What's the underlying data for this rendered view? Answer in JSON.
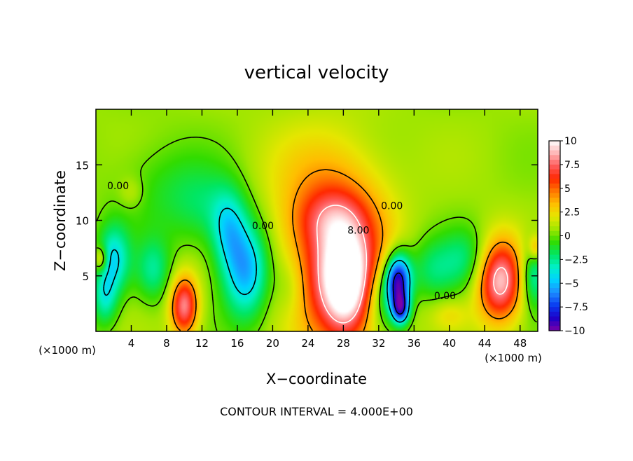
{
  "chart_data": {
    "type": "heatmap",
    "title": "vertical velocity",
    "xlabel": "X−coordinate",
    "ylabel": "Z−coordinate",
    "x_unit": "(×1000 m)",
    "x_unit_right": "(×1000 m)",
    "footer": "CONTOUR INTERVAL = 4.000E+00",
    "xlim": [
      0,
      50
    ],
    "ylim": [
      0,
      20
    ],
    "x_ticks": [
      4,
      8,
      12,
      16,
      20,
      24,
      28,
      32,
      36,
      40,
      44,
      48
    ],
    "x_tick_labels": [
      "4",
      "8",
      "12",
      "16",
      "20",
      "24",
      "28",
      "32",
      "36",
      "40",
      "44",
      "48"
    ],
    "y_ticks": [
      5,
      10,
      15
    ],
    "y_tick_labels": [
      "5",
      "10",
      "15"
    ],
    "colorbar": {
      "range": [
        -10,
        10
      ],
      "ticks": [
        10,
        7.5,
        5,
        2.5,
        0,
        -2.5,
        -5,
        -7.5,
        -10
      ],
      "tick_labels": [
        "10",
        "7.5",
        "5",
        "2.5",
        "0",
        "−2.5",
        "−5",
        "−7.5",
        "−10"
      ],
      "colors": [
        "#7b00a8",
        "#1b00c8",
        "#0a3cf0",
        "#1e8cff",
        "#00d2ff",
        "#00f0c8",
        "#00e664",
        "#32dc00",
        "#a0e600",
        "#e6e600",
        "#ffbe00",
        "#ff7800",
        "#ff2800",
        "#ff5a5a",
        "#ffb4b4",
        "#ffffff"
      ]
    },
    "contour_interval": 4,
    "contour_labels": [
      {
        "text": "0.00",
        "x": 2.5,
        "z": 12.8
      },
      {
        "text": "0.00",
        "x": 18.9,
        "z": 9.2
      },
      {
        "text": "0.00",
        "x": 33.5,
        "z": 11.0
      },
      {
        "text": "0.00",
        "x": 39.5,
        "z": 2.9
      },
      {
        "text": "8.00",
        "x": 29.7,
        "z": 8.8
      }
    ],
    "features": [
      {
        "x": 27.5,
        "z": 6.0,
        "sx": 3.8,
        "sz": 5.2,
        "amp": 7.5
      },
      {
        "x": 28.3,
        "z": 4.2,
        "sx": 1.8,
        "sz": 3.0,
        "amp": 6.0
      },
      {
        "x": 26.5,
        "z": 10.2,
        "sx": 2.8,
        "sz": 1.8,
        "amp": 2.0
      },
      {
        "x": 24.5,
        "z": 13.5,
        "sx": 5.0,
        "sz": 4.0,
        "amp": 1.5
      },
      {
        "x": 10.0,
        "z": 2.3,
        "sx": 1.1,
        "sz": 1.9,
        "amp": 7.5
      },
      {
        "x": 45.7,
        "z": 4.6,
        "sx": 1.8,
        "sz": 2.6,
        "amp": 8.5
      },
      {
        "x": 34.2,
        "z": 4.6,
        "sx": 1.0,
        "sz": 1.7,
        "amp": -9.5
      },
      {
        "x": 34.5,
        "z": 2.0,
        "sx": 0.7,
        "sz": 1.0,
        "amp": -7.0
      },
      {
        "x": 32.5,
        "z": 3.0,
        "sx": 1.5,
        "sz": 2.2,
        "amp": -3.5
      },
      {
        "x": 17.0,
        "z": 5.5,
        "sx": 1.8,
        "sz": 3.0,
        "amp": -6.0
      },
      {
        "x": 15.0,
        "z": 9.0,
        "sx": 1.4,
        "sz": 2.5,
        "amp": -3.5
      },
      {
        "x": 13.0,
        "z": 11.0,
        "sx": 3.0,
        "sz": 2.5,
        "amp": -2.0
      },
      {
        "x": 8.0,
        "z": 13.0,
        "sx": 4.0,
        "sz": 3.0,
        "amp": -1.5
      },
      {
        "x": 2.0,
        "z": 6.5,
        "sx": 1.3,
        "sz": 2.2,
        "amp": -4.5
      },
      {
        "x": 1.0,
        "z": 3.0,
        "sx": 1.0,
        "sz": 1.8,
        "amp": -3.5
      },
      {
        "x": 6.5,
        "z": 5.5,
        "sx": 1.4,
        "sz": 2.0,
        "amp": -3.0
      },
      {
        "x": 22.0,
        "z": 4.0,
        "sx": 1.3,
        "sz": 2.0,
        "amp": -1.5
      },
      {
        "x": 38.0,
        "z": 5.5,
        "sx": 2.0,
        "sz": 2.0,
        "amp": -2.5
      },
      {
        "x": 42.0,
        "z": 6.5,
        "sx": 2.0,
        "sz": 2.0,
        "amp": -2.5
      },
      {
        "x": 49.5,
        "z": 5.0,
        "sx": 1.0,
        "sz": 2.0,
        "amp": -4.0
      },
      {
        "x": 40.0,
        "z": 1.5,
        "sx": 1.5,
        "sz": 1.0,
        "amp": 1.5
      },
      {
        "x": 0.6,
        "z": 6.5,
        "sx": 0.5,
        "sz": 0.8,
        "amp": 3.5
      },
      {
        "x": 49.7,
        "z": 7.5,
        "sx": 0.5,
        "sz": 0.8,
        "amp": 3.0
      },
      {
        "x": 4.0,
        "z": 12.5,
        "sx": 1.0,
        "sz": 1.0,
        "amp": 1.2
      }
    ]
  }
}
